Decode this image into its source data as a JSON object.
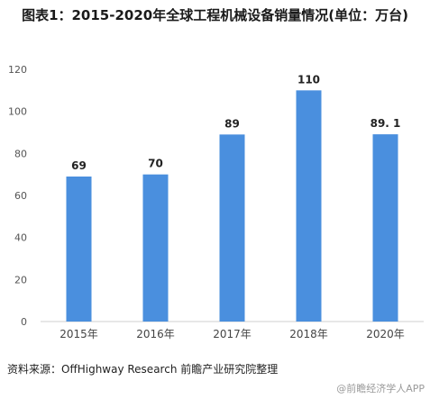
{
  "chart_data": {
    "type": "bar",
    "title": "图表1：2015-2020年全球工程机械设备销量情况(单位：万台)",
    "categories": [
      "2015年",
      "2016年",
      "2017年",
      "2018年",
      "2020年"
    ],
    "values": [
      69,
      70,
      89,
      110,
      89.1
    ],
    "data_labels": [
      "69",
      "70",
      "89",
      "110",
      "89. 1"
    ],
    "ylim": [
      0,
      120
    ],
    "yticks": [
      0,
      20,
      40,
      60,
      80,
      100,
      120
    ],
    "xlabel": "",
    "ylabel": "",
    "bar_color": "#4a8fde",
    "grid": false,
    "legend": "none"
  },
  "source_text": "资料来源：OffHighway Research 前瞻产业研究院整理",
  "watermark_text": "@前瞻经济学人APP"
}
